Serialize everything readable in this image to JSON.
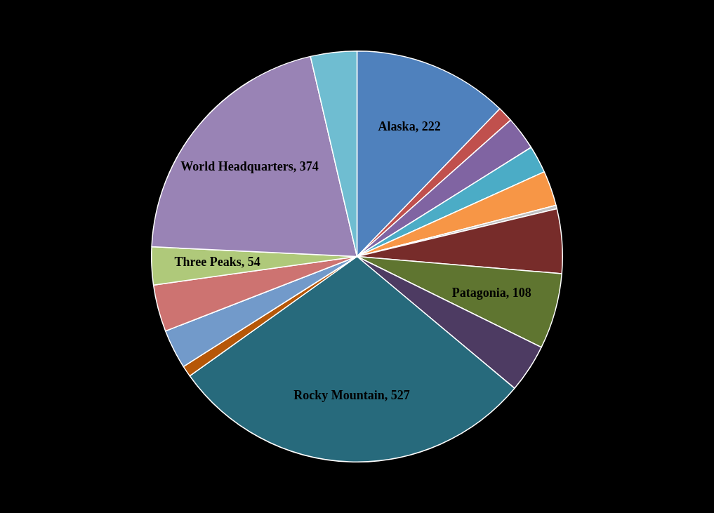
{
  "chart_data": {
    "type": "pie",
    "categories": [
      "Alaska",
      null,
      null,
      null,
      null,
      null,
      null,
      "Patagonia",
      null,
      "Rocky Mountain",
      null,
      null,
      null,
      "Three Peaks",
      "World Headquarters",
      null
    ],
    "values": [
      222,
      22,
      48,
      39,
      50,
      5,
      92,
      108,
      69,
      527,
      16,
      56,
      67,
      54,
      374,
      66
    ],
    "colors": [
      "#4f81bd",
      "#c0504d",
      "#8064a2",
      "#4bacc6",
      "#f79646",
      "#c0c0c0",
      "#772c2a",
      "#5f7530",
      "#4d3b62",
      "#276a7c",
      "#b65708",
      "#729aca",
      "#cd7371",
      "#afc97a",
      "#9983b5",
      "#6fbdd1"
    ],
    "value_labels": [
      "222",
      null,
      null,
      null,
      null,
      null,
      null,
      "108",
      null,
      "527",
      null,
      null,
      null,
      "54",
      "374",
      null
    ],
    "legend": false
  }
}
